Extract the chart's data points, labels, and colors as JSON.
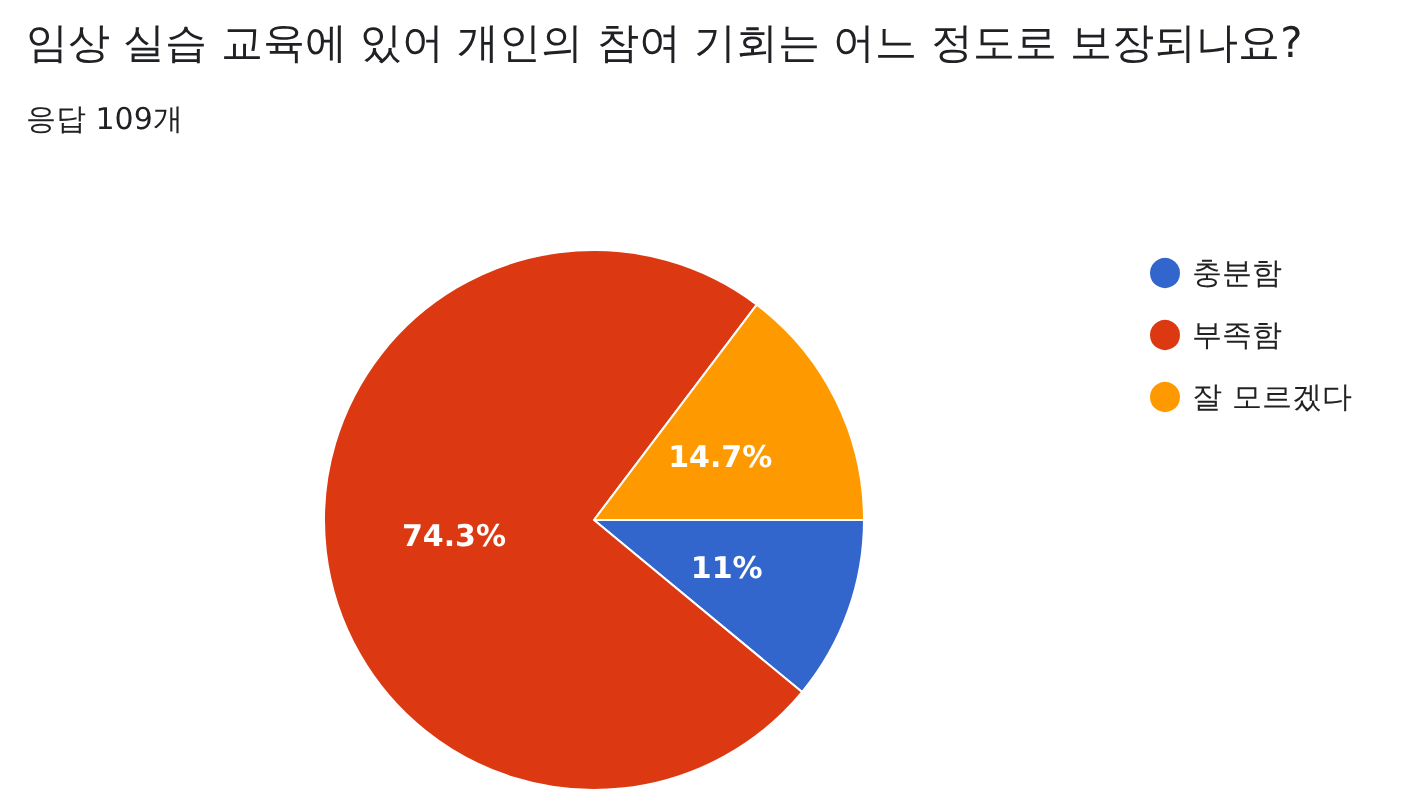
{
  "chart_data": {
    "type": "pie",
    "title": "임상 실습 교육에 있어 개인의 참여 기회는 어느 정도로 보장되나요?",
    "subtitle": "응답 109개",
    "categories": [
      "충분함",
      "부족함",
      "잘 모르겠다"
    ],
    "values": [
      11,
      74.3,
      14.7
    ],
    "colors": [
      "#3366cc",
      "#dc3912",
      "#ff9900"
    ],
    "value_labels": [
      "11%",
      "74.3%",
      "14.7%"
    ],
    "legend": "right"
  }
}
